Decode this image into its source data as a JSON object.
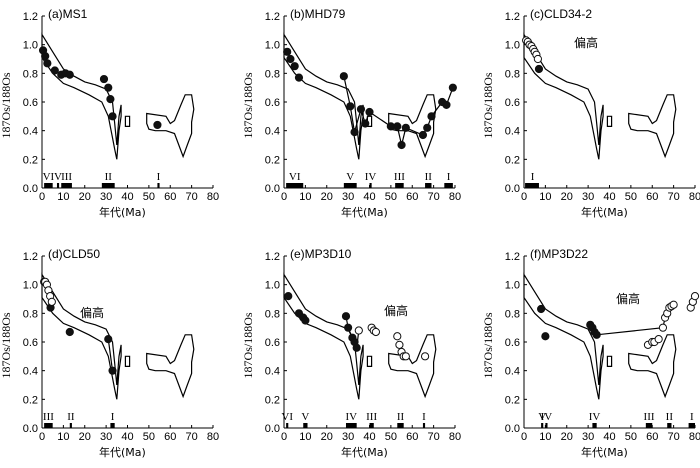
{
  "chart_data": [
    {
      "id": "a",
      "type": "scatter",
      "title": "(a)MS1",
      "xlabel": "年代(Ma)",
      "ylabel": "187Os/188Os",
      "xlim": [
        0,
        80
      ],
      "ylim": [
        0,
        1.2
      ],
      "xticks": [
        "0",
        "10",
        "20",
        "30",
        "40",
        "50",
        "60",
        "70",
        "80"
      ],
      "yticks": [
        "0.0",
        "0.2",
        "0.4",
        "0.6",
        "0.8",
        "1.0",
        "1.2"
      ],
      "note": "",
      "points_filled": [
        [
          0.5,
          0.96
        ],
        [
          1.5,
          0.92
        ],
        [
          2.5,
          0.87
        ],
        [
          6,
          0.82
        ],
        [
          9,
          0.79
        ],
        [
          11,
          0.8
        ],
        [
          13,
          0.79
        ],
        [
          29,
          0.76
        ],
        [
          31,
          0.7
        ],
        [
          32,
          0.62
        ],
        [
          33,
          0.5
        ],
        [
          54,
          0.44
        ]
      ],
      "points_open": [],
      "connect": [
        [
          0.5,
          0.96
        ],
        [
          1.5,
          0.92
        ],
        [
          2.5,
          0.87
        ]
      ],
      "intervals": [
        [
          1,
          5
        ],
        [
          7,
          8
        ],
        [
          9,
          14
        ],
        [
          28,
          34
        ],
        [
          54,
          55
        ]
      ],
      "intervals_labels": [
        {
          "x": 3,
          "text": "VI"
        },
        {
          "x": 7.5,
          "text": "V"
        },
        {
          "x": 11.5,
          "text": "III"
        },
        {
          "x": 31,
          "text": "II"
        },
        {
          "x": 54.5,
          "text": "I"
        }
      ]
    },
    {
      "id": "b",
      "type": "scatter",
      "title": "(b)MHD79",
      "xlabel": "年代(Ma)",
      "ylabel": "187Os/188Os",
      "xlim": [
        0,
        80
      ],
      "ylim": [
        0,
        1.2
      ],
      "xticks": [
        "0",
        "10",
        "20",
        "30",
        "40",
        "50",
        "60",
        "70",
        "80"
      ],
      "yticks": [
        "0.0",
        "0.2",
        "0.4",
        "0.6",
        "0.8",
        "1.0",
        "1.2"
      ],
      "note": "",
      "points_filled": [
        [
          1.5,
          0.95
        ],
        [
          3,
          0.9
        ],
        [
          5,
          0.85
        ],
        [
          7,
          0.77
        ],
        [
          28,
          0.78
        ],
        [
          31,
          0.57
        ],
        [
          33,
          0.39
        ],
        [
          36,
          0.55
        ],
        [
          38,
          0.45
        ],
        [
          40,
          0.53
        ],
        [
          50,
          0.43
        ],
        [
          53,
          0.43
        ],
        [
          55,
          0.3
        ],
        [
          57,
          0.42
        ],
        [
          65,
          0.37
        ],
        [
          67,
          0.42
        ],
        [
          69,
          0.5
        ],
        [
          74,
          0.6
        ],
        [
          76,
          0.58
        ],
        [
          79,
          0.7
        ]
      ],
      "points_open": [],
      "connect": [
        [
          28,
          0.78
        ],
        [
          31,
          0.57
        ],
        [
          33,
          0.39
        ],
        [
          36,
          0.55
        ],
        [
          38,
          0.45
        ],
        [
          40,
          0.53
        ],
        [
          50,
          0.43
        ],
        [
          53,
          0.43
        ],
        [
          55,
          0.3
        ],
        [
          57,
          0.42
        ],
        [
          65,
          0.37
        ],
        [
          67,
          0.42
        ],
        [
          69,
          0.5
        ],
        [
          74,
          0.6
        ],
        [
          76,
          0.58
        ],
        [
          79,
          0.7
        ]
      ],
      "intervals": [
        [
          1,
          9
        ],
        [
          28,
          34
        ],
        [
          40,
          41
        ],
        [
          52,
          56
        ],
        [
          66,
          69
        ],
        [
          75,
          79
        ]
      ],
      "intervals_labels": [
        {
          "x": 5,
          "text": "VI"
        },
        {
          "x": 31,
          "text": "V"
        },
        {
          "x": 40.5,
          "text": "IV"
        },
        {
          "x": 54,
          "text": "III"
        },
        {
          "x": 67.5,
          "text": "II"
        },
        {
          "x": 77,
          "text": "I"
        }
      ]
    },
    {
      "id": "c",
      "type": "scatter",
      "title": "(c)CLD34-2",
      "xlabel": "年代(Ma)",
      "ylabel": "187Os/188Os",
      "xlim": [
        0,
        80
      ],
      "ylim": [
        0,
        1.2
      ],
      "xticks": [
        "0",
        "10",
        "20",
        "30",
        "40",
        "50",
        "60",
        "70",
        "80"
      ],
      "yticks": [
        "0.0",
        "0.2",
        "0.4",
        "0.6",
        "0.8",
        "1.0",
        "1.2"
      ],
      "note": "偏高",
      "points_filled": [
        [
          7,
          0.83
        ]
      ],
      "points_open": [
        [
          1,
          1.03
        ],
        [
          1.8,
          1.02
        ],
        [
          2.6,
          1.0
        ],
        [
          3.5,
          0.99
        ],
        [
          4.3,
          0.97
        ],
        [
          5,
          0.95
        ],
        [
          5.8,
          0.93
        ],
        [
          6.5,
          0.9
        ]
      ],
      "connect": [],
      "intervals": [
        [
          0.5,
          7
        ]
      ],
      "intervals_labels": [
        {
          "x": 4,
          "text": "I"
        }
      ]
    },
    {
      "id": "d",
      "type": "scatter",
      "title": "(d)CLD50",
      "xlabel": "年代(Ma)",
      "ylabel": "187Os/188Os",
      "xlim": [
        0,
        80
      ],
      "ylim": [
        0,
        1.2
      ],
      "xticks": [
        "0",
        "10",
        "20",
        "30",
        "40",
        "50",
        "60",
        "70",
        "80"
      ],
      "yticks": [
        "0.0",
        "0.2",
        "0.4",
        "0.6",
        "0.8",
        "1.0",
        "1.2"
      ],
      "note": "偏高",
      "points_filled": [
        [
          1,
          1.02
        ],
        [
          4,
          0.84
        ],
        [
          13,
          0.67
        ],
        [
          31,
          0.62
        ],
        [
          33,
          0.4
        ]
      ],
      "points_open": [
        [
          1.5,
          1.02
        ],
        [
          2.3,
          1.0
        ],
        [
          3,
          0.96
        ],
        [
          3.8,
          0.92
        ],
        [
          4.6,
          0.88
        ]
      ],
      "connect": [
        [
          31,
          0.62
        ],
        [
          33,
          0.4
        ]
      ],
      "intervals": [
        [
          1,
          5
        ],
        [
          13,
          14
        ],
        [
          32,
          34
        ]
      ],
      "intervals_labels": [
        {
          "x": 3,
          "text": "III"
        },
        {
          "x": 13.5,
          "text": "II"
        },
        {
          "x": 33,
          "text": "I"
        }
      ]
    },
    {
      "id": "e",
      "type": "scatter",
      "title": "(e)MP3D10",
      "xlabel": "年代(Ma)",
      "ylabel": "187Os/188Os",
      "xlim": [
        0,
        80
      ],
      "ylim": [
        0,
        1.2
      ],
      "xticks": [
        "0",
        "10",
        "20",
        "30",
        "40",
        "50",
        "60",
        "70",
        "80"
      ],
      "yticks": [
        "0.0",
        "0.2",
        "0.4",
        "0.6",
        "0.8",
        "1.0",
        "1.2"
      ],
      "note": "偏高",
      "points_filled": [
        [
          2,
          0.92
        ],
        [
          7,
          0.8
        ],
        [
          9,
          0.77
        ],
        [
          10,
          0.75
        ],
        [
          29,
          0.78
        ],
        [
          30,
          0.7
        ],
        [
          32,
          0.63
        ],
        [
          33,
          0.6
        ],
        [
          34,
          0.56
        ]
      ],
      "points_open": [
        [
          35,
          0.68
        ],
        [
          41,
          0.7
        ],
        [
          42,
          0.68
        ],
        [
          43,
          0.67
        ],
        [
          53,
          0.64
        ],
        [
          54,
          0.58
        ],
        [
          55,
          0.53
        ],
        [
          56,
          0.5
        ],
        [
          57,
          0.5
        ],
        [
          66,
          0.5
        ]
      ],
      "connect": [
        [
          29,
          0.78
        ],
        [
          30,
          0.7
        ],
        [
          32,
          0.63
        ],
        [
          33,
          0.6
        ],
        [
          34,
          0.56
        ],
        [
          35,
          0.68
        ]
      ],
      "intervals": [
        [
          1,
          2
        ],
        [
          9,
          11
        ],
        [
          29,
          34
        ],
        [
          40,
          42
        ],
        [
          53,
          56
        ],
        [
          65,
          66
        ]
      ],
      "intervals_labels": [
        {
          "x": 1.5,
          "text": "VI"
        },
        {
          "x": 10,
          "text": "V"
        },
        {
          "x": 31.5,
          "text": "IV"
        },
        {
          "x": 41,
          "text": "III"
        },
        {
          "x": 54.5,
          "text": "II"
        },
        {
          "x": 65.5,
          "text": "I"
        }
      ]
    },
    {
      "id": "f",
      "type": "scatter",
      "title": "(f)MP3D22",
      "xlabel": "年代(Ma)",
      "ylabel": "187Os/188Os",
      "xlim": [
        0,
        80
      ],
      "ylim": [
        0,
        1.2
      ],
      "xticks": [
        "0",
        "10",
        "20",
        "30",
        "40",
        "50",
        "60",
        "70",
        "80"
      ],
      "yticks": [
        "0.0",
        "0.2",
        "0.4",
        "0.6",
        "0.8",
        "1.0",
        "1.2"
      ],
      "note": "偏高",
      "points_filled": [
        [
          8,
          0.83
        ],
        [
          10,
          0.64
        ],
        [
          31,
          0.72
        ],
        [
          32,
          0.7
        ],
        [
          33,
          0.67
        ],
        [
          34,
          0.65
        ]
      ],
      "points_open": [
        [
          58,
          0.58
        ],
        [
          60,
          0.6
        ],
        [
          61,
          0.6
        ],
        [
          63,
          0.62
        ],
        [
          65,
          0.7
        ],
        [
          66,
          0.77
        ],
        [
          67,
          0.8
        ],
        [
          68,
          0.84
        ],
        [
          69,
          0.85
        ],
        [
          70,
          0.86
        ],
        [
          78,
          0.84
        ],
        [
          79,
          0.88
        ],
        [
          80,
          0.92
        ]
      ],
      "connect": [
        [
          31,
          0.72
        ],
        [
          32,
          0.7
        ],
        [
          33,
          0.67
        ],
        [
          34,
          0.65
        ],
        [
          65,
          0.7
        ],
        [
          66,
          0.77
        ],
        [
          67,
          0.8
        ],
        [
          68,
          0.84
        ],
        [
          69,
          0.85
        ],
        [
          70,
          0.86
        ]
      ],
      "intervals": [
        [
          8,
          9
        ],
        [
          10,
          11
        ],
        [
          32,
          34
        ],
        [
          57,
          60
        ],
        [
          67,
          69
        ],
        [
          77,
          80
        ]
      ],
      "intervals_labels": [
        {
          "x": 8.5,
          "text": "V"
        },
        {
          "x": 10.5,
          "text": "IV"
        },
        {
          "x": 33,
          "text": "IV"
        },
        {
          "x": 58.5,
          "text": "III"
        },
        {
          "x": 68,
          "text": "II"
        },
        {
          "x": 78.5,
          "text": "I"
        }
      ]
    }
  ],
  "envelope_reference": {
    "main_band_upper": [
      [
        0,
        1.07
      ],
      [
        5,
        0.95
      ],
      [
        10,
        0.83
      ],
      [
        15,
        0.78
      ],
      [
        20,
        0.74
      ],
      [
        25,
        0.72
      ],
      [
        30,
        0.69
      ],
      [
        33,
        0.6
      ],
      [
        34,
        0.45
      ],
      [
        35,
        0.3
      ],
      [
        36,
        0.5
      ],
      [
        37,
        0.58
      ]
    ],
    "main_band_lower": [
      [
        37,
        0.5
      ],
      [
        36,
        0.4
      ],
      [
        35,
        0.2
      ],
      [
        34,
        0.27
      ],
      [
        33,
        0.35
      ],
      [
        31,
        0.5
      ],
      [
        28,
        0.6
      ],
      [
        22,
        0.65
      ],
      [
        15,
        0.7
      ],
      [
        10,
        0.73
      ],
      [
        5,
        0.8
      ],
      [
        0,
        0.91
      ]
    ],
    "late_shape": [
      [
        49,
        0.52
      ],
      [
        58,
        0.5
      ],
      [
        60,
        0.45
      ],
      [
        62,
        0.47
      ],
      [
        65,
        0.58
      ],
      [
        67,
        0.65
      ],
      [
        70,
        0.65
      ],
      [
        71,
        0.55
      ],
      [
        70,
        0.46
      ],
      [
        70,
        0.38
      ],
      [
        68,
        0.3
      ],
      [
        66,
        0.22
      ],
      [
        64,
        0.3
      ],
      [
        62,
        0.38
      ],
      [
        58,
        0.4
      ],
      [
        53,
        0.4
      ],
      [
        50,
        0.41
      ],
      [
        49,
        0.45
      ]
    ],
    "small_box": [
      [
        39,
        0.5
      ],
      [
        41,
        0.5
      ],
      [
        41,
        0.43
      ],
      [
        39,
        0.43
      ]
    ]
  }
}
